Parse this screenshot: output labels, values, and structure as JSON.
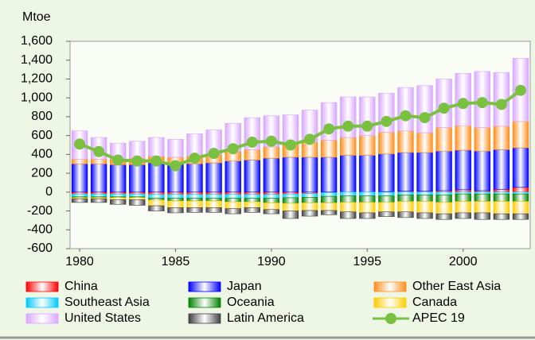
{
  "chart_data": {
    "type": "bar",
    "stacked": true,
    "y_label": "Mtoe",
    "x": [
      1980,
      1981,
      1982,
      1983,
      1984,
      1985,
      1986,
      1987,
      1988,
      1989,
      1990,
      1991,
      1992,
      1993,
      1994,
      1995,
      1996,
      1997,
      1998,
      1999,
      2000,
      2001,
      2002,
      2003
    ],
    "xlim": [
      1979.5,
      2003.5
    ],
    "xticks": [
      1980,
      1985,
      1990,
      1995,
      2000
    ],
    "ylim": [
      -600,
      1600
    ],
    "yticks": [
      -600,
      -400,
      -200,
      0,
      200,
      400,
      600,
      800,
      {
        "value": 1000,
        "label": "1,000"
      },
      {
        "value": 1200,
        "label": "1,200"
      },
      {
        "value": 1400,
        "label": "1,400"
      },
      {
        "value": 1600,
        "label": "1,600"
      }
    ],
    "grid": false,
    "legend": "bottom",
    "series": [
      {
        "name": "China",
        "color": "#ff0000",
        "values": [
          -20,
          -20,
          -20,
          -20,
          -25,
          -25,
          -25,
          -25,
          -25,
          -25,
          -25,
          -20,
          -15,
          -5,
          0,
          0,
          5,
          10,
          10,
          15,
          25,
          15,
          30,
          50
        ]
      },
      {
        "name": "Japan",
        "color": "#0000ff",
        "values": [
          300,
          300,
          290,
          290,
          310,
          300,
          300,
          310,
          330,
          340,
          360,
          370,
          370,
          370,
          390,
          390,
          400,
          410,
          410,
          420,
          420,
          420,
          420,
          420
        ]
      },
      {
        "name": "Other East Asia",
        "color": "#ff8c1a",
        "values": [
          50,
          50,
          60,
          70,
          70,
          70,
          80,
          90,
          100,
          110,
          120,
          140,
          160,
          180,
          190,
          210,
          230,
          230,
          210,
          250,
          260,
          250,
          250,
          280
        ]
      },
      {
        "name": "Southeast Asia",
        "color": "#00c8ff",
        "values": [
          -30,
          -30,
          -30,
          -30,
          -40,
          -40,
          -40,
          -40,
          -40,
          -40,
          -40,
          -40,
          -40,
          -40,
          -40,
          -40,
          -40,
          -30,
          -30,
          -30,
          -20,
          -20,
          -20,
          -20
        ]
      },
      {
        "name": "Oceania",
        "color": "#008000",
        "values": [
          -10,
          -10,
          -10,
          -10,
          -20,
          -30,
          -30,
          -30,
          -40,
          -40,
          -50,
          -60,
          -60,
          -70,
          -70,
          -70,
          -70,
          -70,
          -70,
          -80,
          -80,
          -80,
          -80,
          -80
        ]
      },
      {
        "name": "Canada",
        "color": "#ffcc00",
        "values": [
          -10,
          -10,
          -20,
          -20,
          -60,
          -70,
          -70,
          -70,
          -70,
          -60,
          -70,
          -80,
          -80,
          -80,
          -100,
          -110,
          -100,
          -110,
          -120,
          -120,
          -120,
          -120,
          -130,
          -130
        ]
      },
      {
        "name": "United States",
        "color": "#d9a6ff",
        "values": [
          300,
          230,
          170,
          180,
          200,
          190,
          240,
          260,
          300,
          340,
          330,
          310,
          340,
          400,
          430,
          410,
          415,
          460,
          500,
          515,
          555,
          595,
          570,
          670
        ]
      },
      {
        "name": "Latin America",
        "color": "#404040",
        "values": [
          -40,
          -40,
          -50,
          -60,
          -55,
          -55,
          -50,
          -50,
          -55,
          -50,
          -45,
          -80,
          -60,
          -45,
          -70,
          -60,
          -50,
          -60,
          -60,
          -60,
          -60,
          -70,
          -60,
          -60
        ]
      },
      {
        "name": "APEC 19",
        "type": "line",
        "color": "#7ac142",
        "values": [
          510,
          430,
          340,
          330,
          330,
          280,
          360,
          410,
          460,
          530,
          540,
          500,
          560,
          670,
          700,
          700,
          750,
          810,
          790,
          890,
          940,
          950,
          930,
          1080
        ]
      }
    ]
  }
}
